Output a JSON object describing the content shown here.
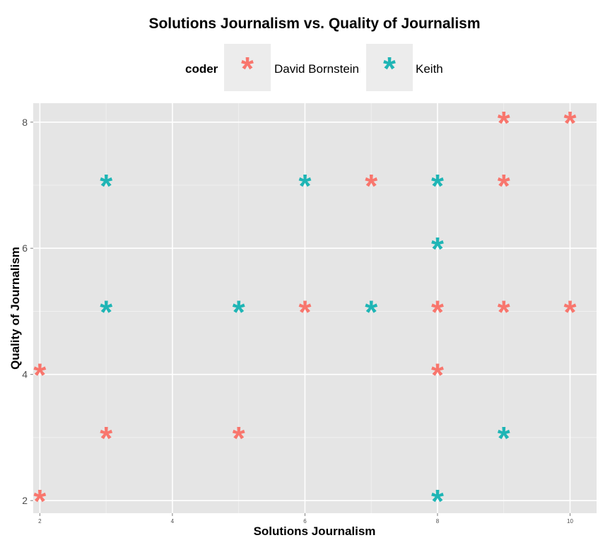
{
  "chart_data": {
    "type": "scatter",
    "title": "Solutions Journalism vs. Quality of Journalism",
    "xlabel": "Solutions Journalism",
    "ylabel": "Quality of Journalism",
    "xlim": [
      1.9,
      10.4
    ],
    "ylim": [
      1.8,
      8.3
    ],
    "x_ticks": [
      2,
      4,
      6,
      8,
      10
    ],
    "y_ticks": [
      2,
      4,
      6,
      8
    ],
    "grid": true,
    "marker": "*",
    "legend": {
      "title": "coder",
      "position": "top"
    },
    "series": [
      {
        "name": "David Bornstein",
        "color": "#F8766D",
        "points": [
          {
            "x": 2,
            "y": 2
          },
          {
            "x": 2,
            "y": 4
          },
          {
            "x": 3,
            "y": 3
          },
          {
            "x": 5,
            "y": 3
          },
          {
            "x": 6,
            "y": 5
          },
          {
            "x": 7,
            "y": 7
          },
          {
            "x": 8,
            "y": 4
          },
          {
            "x": 8,
            "y": 5
          },
          {
            "x": 9,
            "y": 5
          },
          {
            "x": 9,
            "y": 7
          },
          {
            "x": 9,
            "y": 8
          },
          {
            "x": 10,
            "y": 5
          },
          {
            "x": 10,
            "y": 8
          }
        ]
      },
      {
        "name": "Keith",
        "color": "#1FB5B5",
        "points": [
          {
            "x": 3,
            "y": 5
          },
          {
            "x": 3,
            "y": 7
          },
          {
            "x": 5,
            "y": 5
          },
          {
            "x": 6,
            "y": 7
          },
          {
            "x": 7,
            "y": 5
          },
          {
            "x": 8,
            "y": 2
          },
          {
            "x": 8,
            "y": 6
          },
          {
            "x": 8,
            "y": 7
          },
          {
            "x": 9,
            "y": 3
          }
        ]
      }
    ]
  }
}
